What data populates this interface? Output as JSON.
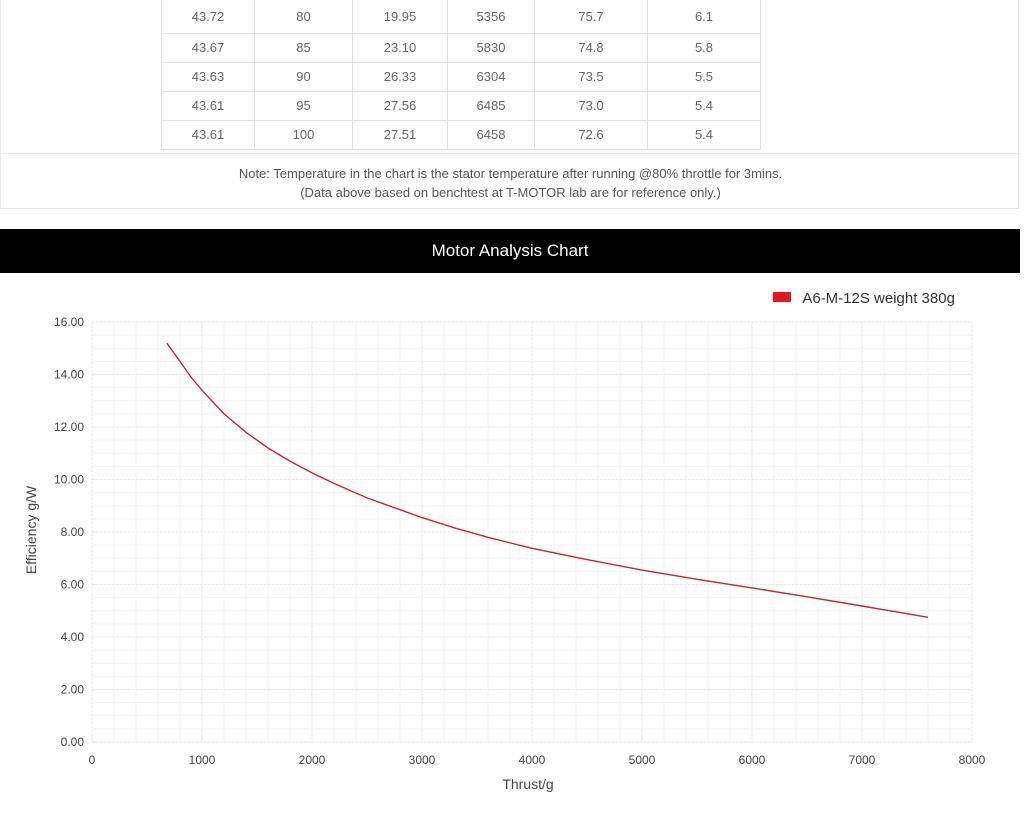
{
  "table": {
    "rows": [
      [
        "43.72",
        "80",
        "19.95",
        "5356",
        "75.7",
        "6.1"
      ],
      [
        "43.67",
        "85",
        "23.10",
        "5830",
        "74.8",
        "5.8"
      ],
      [
        "43.63",
        "90",
        "26.33",
        "6304",
        "73.5",
        "5.5"
      ],
      [
        "43.61",
        "95",
        "27.56",
        "6485",
        "73.0",
        "5.4"
      ],
      [
        "43.61",
        "100",
        "27.51",
        "6458",
        "72.6",
        "5.4"
      ]
    ]
  },
  "note": {
    "line1": "Note: Temperature in the chart is the stator temperature after running @80% throttle for 3mins.",
    "line2": "(Data above based on benchtest at T-MOTOR lab are for reference only.)"
  },
  "chart_header": {
    "title": "Motor Analysis Chart"
  },
  "chart_data": {
    "type": "line",
    "title": "Motor Analysis Chart",
    "xlabel": "Thrust/g",
    "ylabel": "Efficiency g/W",
    "xlim": [
      0,
      8000
    ],
    "ylim": [
      0,
      16
    ],
    "x_ticks": [
      "0",
      "1000",
      "2000",
      "3000",
      "4000",
      "5000",
      "6000",
      "7000",
      "8000"
    ],
    "y_ticks": [
      "0.00",
      "2.00",
      "4.00",
      "6.00",
      "8.00",
      "10.00",
      "12.00",
      "14.00",
      "16.00"
    ],
    "grid": true,
    "legend_position": "top-right",
    "series": [
      {
        "name": "A6-M-12S weight 380g",
        "color": "#c8262c",
        "legend_color": "#e8161b",
        "x": [
          680,
          800,
          900,
          1000,
          1200,
          1400,
          1600,
          1800,
          2000,
          2200,
          2500,
          2800,
          3000,
          3300,
          3600,
          4000,
          4500,
          5000,
          5500,
          6000,
          6500,
          7000,
          7600
        ],
        "y": [
          15.2,
          14.5,
          13.9,
          13.4,
          12.5,
          11.8,
          11.2,
          10.7,
          10.25,
          9.85,
          9.3,
          8.85,
          8.55,
          8.15,
          7.8,
          7.38,
          6.95,
          6.55,
          6.2,
          5.87,
          5.53,
          5.18,
          4.75
        ]
      }
    ]
  }
}
